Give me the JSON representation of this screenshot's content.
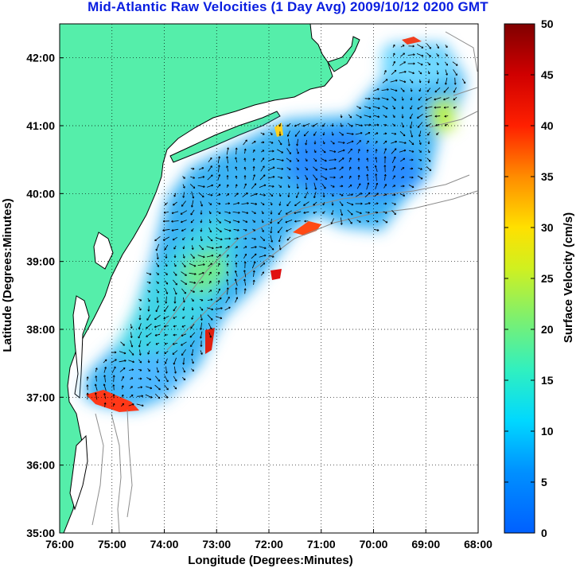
{
  "title": "Mid-Atlantic Raw Velocities (1 Day Avg) 2009/10/12 0200 GMT",
  "map": {
    "xlabel": "Longitude (Degrees:Minutes)",
    "ylabel": "Latitude (Degrees:Minutes)",
    "x_ticks": [
      "76:00",
      "75:00",
      "74:00",
      "73:00",
      "72:00",
      "71:00",
      "70:00",
      "69:00",
      "68:00"
    ],
    "y_ticks": [
      "42:00",
      "41:00",
      "40:00",
      "39:00",
      "38:00",
      "37:00",
      "36:00",
      "35:00"
    ],
    "lon_range": [
      -76,
      -68
    ],
    "lat_range": [
      35,
      42.5
    ],
    "grid": "dotted"
  },
  "colorbar": {
    "label": "Surface Velocity (cm/s)",
    "ticks": [
      "50",
      "45",
      "40",
      "35",
      "30",
      "25",
      "20",
      "15",
      "10",
      "5",
      "0"
    ],
    "range": [
      0,
      50
    ],
    "colormap": "jet"
  },
  "colors": {
    "title": "#0a1ee0",
    "land": "#55eeaa",
    "water_low": "#2a8cff",
    "water_mid": "#3ad8e6",
    "high": "#e83a10"
  }
}
